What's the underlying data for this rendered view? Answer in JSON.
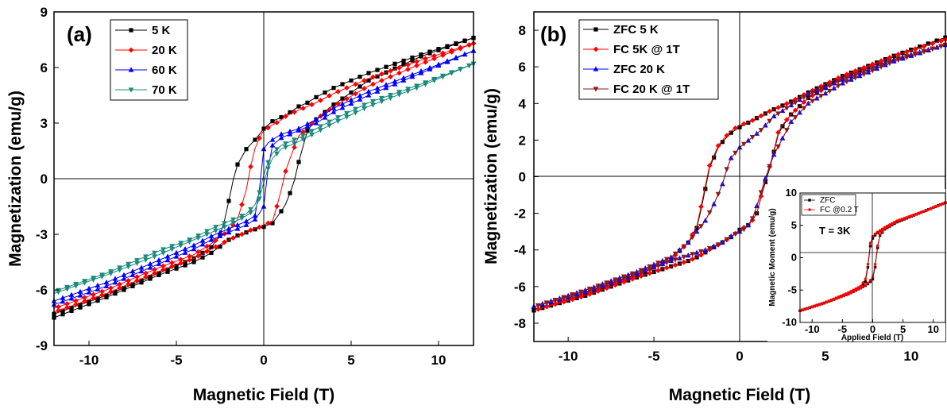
{
  "chart_data": [
    {
      "type": "line",
      "panel_label": "(a)",
      "xlabel": "Magnetic Field (T)",
      "ylabel": "Magnetization (emu/g)",
      "xlim": [
        -12,
        12
      ],
      "ylim": [
        -9,
        9
      ],
      "xticks": [
        -10,
        -5,
        0,
        5,
        10
      ],
      "yticks": [
        -9,
        -6,
        -3,
        0,
        3,
        6,
        9
      ],
      "legend_position": "top-left",
      "series": [
        {
          "name": "5 K",
          "color": "#000000",
          "marker": "square",
          "x": [
            -12,
            -9,
            -6,
            -4,
            -3,
            -2.4,
            -2.0,
            -1.6,
            -1.0,
            -0.4,
            0,
            0.5,
            1.2,
            1.7,
            2.0,
            2.5,
            3,
            4,
            6,
            9,
            12
          ],
          "upper": [
            -7.3,
            -6.3,
            -5.1,
            -4.3,
            -3.7,
            -2.9,
            -1.2,
            0.6,
            1.6,
            2.2,
            2.7,
            3.1,
            3.4,
            3.7,
            3.9,
            4.1,
            4.4,
            4.9,
            5.7,
            6.7,
            7.6
          ],
          "lower": [
            -7.5,
            -6.4,
            -5.2,
            -4.5,
            -4.0,
            -3.6,
            -3.3,
            -3.1,
            -2.9,
            -2.7,
            -2.6,
            -2.4,
            -1.5,
            -0.3,
            0.9,
            2.6,
            3.2,
            4.0,
            5.3,
            6.6,
            7.6
          ]
        },
        {
          "name": "20 K",
          "color": "#ff0000",
          "marker": "diamond",
          "x": [
            -12,
            -9,
            -6,
            -4,
            -3,
            -2.0,
            -1.5,
            -1.0,
            -0.6,
            -0.2,
            0,
            0.5,
            0.9,
            1.3,
            2.0,
            3,
            4,
            6,
            9,
            12
          ],
          "upper": [
            -7.0,
            -6.0,
            -4.8,
            -4.1,
            -3.5,
            -2.8,
            -2.2,
            -0.6,
            1.4,
            2.3,
            2.6,
            2.9,
            3.1,
            3.4,
            3.7,
            4.1,
            4.6,
            5.4,
            6.4,
            7.3
          ],
          "lower": [
            -7.2,
            -6.2,
            -5.0,
            -4.3,
            -3.8,
            -3.3,
            -3.1,
            -2.9,
            -2.7,
            -2.6,
            -2.5,
            -2.3,
            -1.0,
            0.6,
            2.3,
            3.2,
            3.9,
            5.0,
            6.2,
            7.3
          ]
        },
        {
          "name": "60 K",
          "color": "#0000ff",
          "marker": "triangle-up",
          "x": [
            -12,
            -9,
            -6,
            -4,
            -3,
            -2,
            -1.0,
            -0.5,
            -0.2,
            0,
            0.2,
            0.5,
            1.0,
            2,
            3,
            4,
            6,
            9,
            12
          ],
          "upper": [
            -6.6,
            -5.6,
            -4.4,
            -3.6,
            -3.1,
            -2.7,
            -2.3,
            -2.0,
            -0.3,
            1.6,
            1.9,
            2.1,
            2.4,
            2.7,
            3.2,
            3.8,
            4.7,
            5.8,
            6.9
          ],
          "lower": [
            -6.8,
            -5.8,
            -4.6,
            -3.8,
            -3.3,
            -2.9,
            -2.5,
            -2.2,
            -1.8,
            -1.5,
            0.3,
            1.8,
            2.2,
            2.6,
            3.0,
            3.6,
            4.5,
            5.7,
            6.9
          ]
        },
        {
          "name": "70 K",
          "color": "#1a8a7d",
          "marker": "triangle-down",
          "x": [
            -12,
            -9,
            -6,
            -4,
            -3,
            -2,
            -1.0,
            -0.4,
            0,
            0.4,
            1.0,
            2,
            3,
            4,
            6,
            9,
            12
          ],
          "upper": [
            -6.1,
            -5.1,
            -3.9,
            -3.2,
            -2.7,
            -2.3,
            -1.9,
            -1.3,
            0.2,
            1.3,
            1.8,
            2.2,
            2.7,
            3.2,
            4.1,
            5.1,
            6.2
          ],
          "lower": [
            -6.2,
            -5.2,
            -4.1,
            -3.3,
            -2.9,
            -2.5,
            -2.0,
            -1.6,
            -0.2,
            1.0,
            1.6,
            2.0,
            2.5,
            3.0,
            3.9,
            5.0,
            6.2
          ]
        }
      ]
    },
    {
      "type": "line",
      "panel_label": "(b)",
      "xlabel": "Magnetic Field (T)",
      "ylabel": "Magnetization (emu/g)",
      "xlim": [
        -12,
        12
      ],
      "ylim": [
        -9,
        9
      ],
      "xticks": [
        -10,
        -5,
        0,
        5,
        10
      ],
      "yticks": [
        -8,
        -6,
        -4,
        -2,
        0,
        2,
        4,
        6,
        8
      ],
      "legend_position": "top-left",
      "series": [
        {
          "name": "ZFC 5 K",
          "color": "#000000",
          "marker": "square",
          "x": [
            -12,
            -9,
            -6,
            -4,
            -3,
            -2.5,
            -2.1,
            -1.8,
            -1.2,
            -0.5,
            0,
            0.6,
            1.0,
            1.4,
            1.8,
            2.3,
            3,
            4,
            6,
            9,
            12
          ],
          "upper": [
            -7.3,
            -6.4,
            -5.4,
            -4.5,
            -3.6,
            -2.8,
            -1.2,
            0.4,
            1.7,
            2.4,
            2.7,
            3.0,
            3.2,
            3.4,
            3.6,
            3.8,
            4.1,
            4.6,
            5.5,
            6.6,
            7.6
          ],
          "lower": [
            -7.3,
            -6.5,
            -5.5,
            -4.9,
            -4.6,
            -4.4,
            -4.2,
            -4.0,
            -3.7,
            -3.3,
            -2.9,
            -2.6,
            -2.0,
            -0.6,
            0.6,
            2.5,
            3.4,
            4.3,
            5.4,
            6.6,
            7.6
          ]
        },
        {
          "name": "FC 5K @ 1T",
          "color": "#ff0000",
          "marker": "diamond",
          "x": [
            -12,
            -9,
            -6,
            -4,
            -3,
            -2.5,
            -2.1,
            -1.8,
            -1.2,
            -0.5,
            0,
            0.6,
            1.0,
            1.4,
            1.8,
            2.3,
            3,
            4,
            6,
            9,
            12
          ],
          "upper": [
            -7.3,
            -6.4,
            -5.4,
            -4.5,
            -3.6,
            -2.7,
            -1.0,
            0.5,
            1.8,
            2.5,
            2.8,
            3.0,
            3.2,
            3.4,
            3.6,
            3.8,
            4.1,
            4.6,
            5.5,
            6.6,
            7.5
          ],
          "lower": [
            -7.3,
            -6.5,
            -5.5,
            -4.9,
            -4.6,
            -4.4,
            -4.2,
            -4.0,
            -3.7,
            -3.3,
            -2.9,
            -2.6,
            -2.0,
            -0.5,
            0.7,
            2.6,
            3.4,
            4.3,
            5.4,
            6.6,
            7.5
          ]
        },
        {
          "name": "ZFC 20 K",
          "color": "#0000ff",
          "marker": "triangle-up",
          "x": [
            -12,
            -9,
            -6,
            -4,
            -3,
            -2,
            -1.5,
            -1.0,
            -0.6,
            0,
            0.4,
            0.8,
            1.2,
            1.6,
            2,
            3,
            4,
            6,
            9,
            12
          ],
          "upper": [
            -7.1,
            -6.2,
            -5.2,
            -4.4,
            -3.6,
            -2.4,
            -1.5,
            -0.4,
            0.9,
            1.6,
            1.9,
            2.2,
            2.5,
            2.9,
            3.3,
            3.9,
            4.5,
            5.3,
            6.4,
            7.2
          ],
          "lower": [
            -7.1,
            -6.3,
            -5.3,
            -4.6,
            -4.3,
            -4.0,
            -3.8,
            -3.6,
            -3.3,
            -3.0,
            -2.8,
            -2.2,
            -1.0,
            0.2,
            1.2,
            3.0,
            4.0,
            5.1,
            6.3,
            7.2
          ]
        },
        {
          "name": "FC 20 K @ 1T",
          "color": "#8b1a1a",
          "marker": "triangle-down",
          "x": [
            -12,
            -9,
            -6,
            -4,
            -3,
            -2,
            -1.5,
            -1.0,
            -0.6,
            0,
            0.4,
            0.8,
            1.2,
            1.6,
            2,
            3,
            4,
            6,
            9,
            12
          ],
          "upper": [
            -7.1,
            -6.2,
            -5.2,
            -4.4,
            -3.6,
            -2.4,
            -1.5,
            -0.4,
            0.9,
            1.6,
            1.9,
            2.2,
            2.5,
            2.9,
            3.3,
            3.9,
            4.5,
            5.3,
            6.4,
            7.2
          ],
          "lower": [
            -7.1,
            -6.3,
            -5.3,
            -4.6,
            -4.3,
            -4.0,
            -3.8,
            -3.6,
            -3.3,
            -3.0,
            -2.8,
            -2.2,
            -1.0,
            0.2,
            1.2,
            3.0,
            4.0,
            5.1,
            6.3,
            7.2
          ]
        }
      ],
      "inset": {
        "type": "line",
        "xlabel": "Applied Field (T)",
        "ylabel": "Magnetic Moment (emu/g)",
        "xlim": [
          -12,
          12
        ],
        "ylim": [
          -10,
          10
        ],
        "xticks": [
          -10,
          -5,
          0,
          5,
          10
        ],
        "yticks": [
          -10,
          -5,
          0,
          5,
          10
        ],
        "annotation": "T = 3K",
        "legend_position": "top-left",
        "series": [
          {
            "name": "ZFC",
            "color": "#000000",
            "marker": "square",
            "x": [
              -12,
              -8,
              -4,
              -2,
              -1,
              -0.5,
              0,
              0.5,
              1,
              2,
              4,
              8,
              12
            ],
            "upper": [
              -8.2,
              -7.0,
              -5.5,
              -4.6,
              -3.5,
              1.5,
              3.0,
              3.6,
              4.0,
              4.6,
              5.6,
              7.0,
              8.5
            ],
            "lower": [
              -8.2,
              -7.0,
              -5.6,
              -4.7,
              -4.2,
              -3.8,
              -3.3,
              -1.0,
              3.2,
              4.4,
              5.5,
              7.0,
              8.5
            ]
          },
          {
            "name": "FC @0.2 T",
            "color": "#ff0000",
            "marker": "circle",
            "x": [
              -12,
              -8,
              -4,
              -2,
              -1,
              -0.5,
              0,
              0.5,
              1,
              2,
              4,
              8,
              12
            ],
            "upper": [
              -8.2,
              -7.0,
              -5.4,
              -4.4,
              -3.0,
              2.0,
              3.3,
              3.8,
              4.1,
              4.7,
              5.7,
              7.0,
              8.5
            ],
            "lower": [
              -8.2,
              -7.0,
              -5.6,
              -4.7,
              -4.1,
              -3.6,
              -3.0,
              -0.5,
              3.4,
              4.5,
              5.6,
              7.0,
              8.5
            ]
          }
        ]
      }
    }
  ]
}
